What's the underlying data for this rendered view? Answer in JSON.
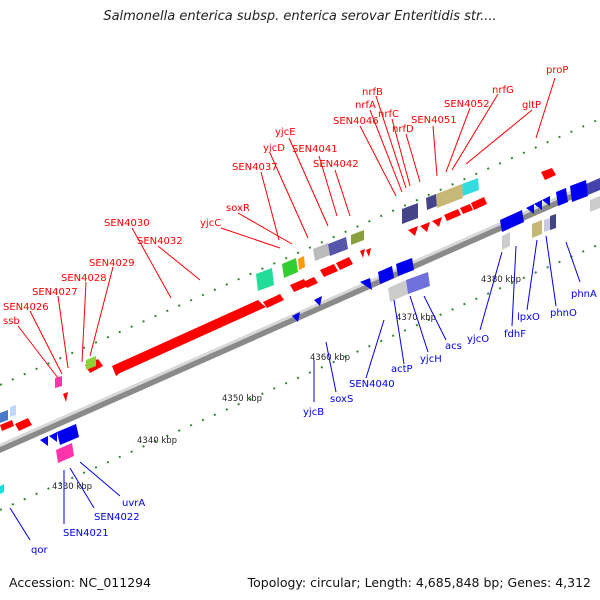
{
  "title": "Salmonella enterica subsp. enterica serovar Enteritidis str....",
  "footer": {
    "accession": "Accession: NC_011294",
    "summary": "Topology: circular; Length: 4,685,848 bp; Genes: 4,312"
  },
  "colors": {
    "forward": "#ff0000",
    "reverse": "#0000ee",
    "backbone": "#999999",
    "tick": "#2e8b2e"
  },
  "ticks": [
    "4330 kbp",
    "4340 kbp",
    "4350 kbp",
    "4360 kbp",
    "4370 kbp",
    "4380 kbp"
  ],
  "forward_labels": [
    "ssb",
    "SEN4026",
    "SEN4027",
    "SEN4028",
    "SEN4029",
    "SEN4030",
    "SEN4032",
    "yjcC",
    "soxR",
    "SEN4037",
    "yjcD",
    "yjcE",
    "SEN4041",
    "SEN4042",
    "SEN4046",
    "nrfA",
    "nrfB",
    "nrfC",
    "nrfD",
    "SEN4051",
    "SEN4052",
    "nrfG",
    "gltP",
    "proP"
  ],
  "reverse_labels": [
    "qor",
    "SEN4021",
    "SEN4022",
    "uvrA",
    "yjcB",
    "soxS",
    "SEN4040",
    "actP",
    "yjcH",
    "acs",
    "yjcO",
    "fdhF",
    "lpxO",
    "phnO",
    "phnA"
  ]
}
